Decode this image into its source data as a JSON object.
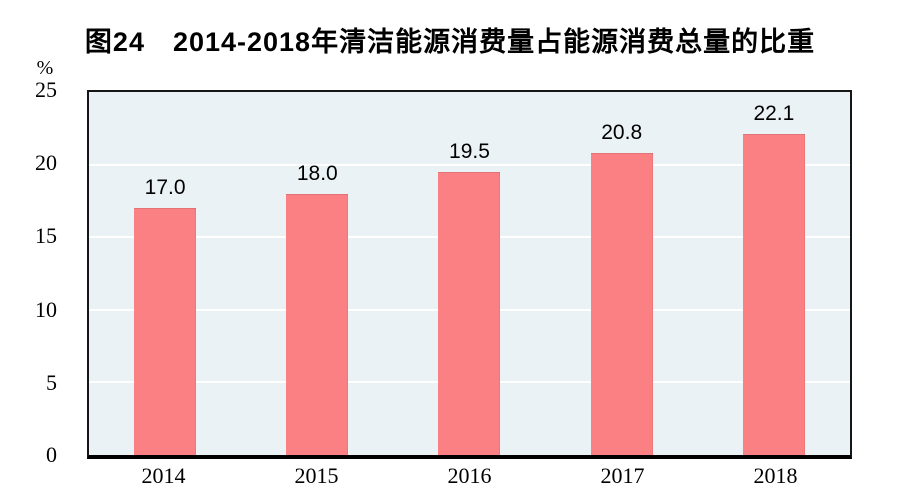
{
  "page": {
    "background": "#ffffff"
  },
  "chart_data": {
    "type": "bar",
    "title": "图24　2014-2018年清洁能源消费量占能源消费总量的比重",
    "unit_label": "%",
    "categories": [
      "2014",
      "2015",
      "2016",
      "2017",
      "2018"
    ],
    "values": [
      17.0,
      18.0,
      19.5,
      20.8,
      22.1
    ],
    "data_labels": [
      "17.0",
      "18.0",
      "19.5",
      "20.8",
      "22.1"
    ],
    "xlabel": "",
    "ylabel": "%",
    "ylim": [
      0,
      25
    ],
    "yticks": [
      25,
      20,
      15,
      10,
      5,
      0
    ],
    "ytick_labels": [
      "25",
      "20",
      "15",
      "10",
      "5",
      "0"
    ],
    "grid": true,
    "gridline_values": [
      5,
      10,
      15,
      20
    ],
    "legend_position": "none",
    "colors": {
      "bar": "#fb8084",
      "plot_background": "#eaf2f6",
      "gridline": "#ffffff",
      "axis_frame": "#161616",
      "text": "#000000"
    }
  }
}
